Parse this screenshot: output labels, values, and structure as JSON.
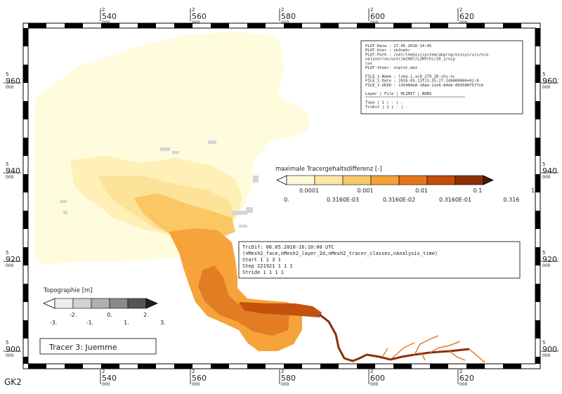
{
  "grid_labels": {
    "x_top": [
      {
        "a": "2",
        "b": "540",
        "c": "000"
      },
      {
        "a": "2",
        "b": "560",
        "c": "000"
      },
      {
        "a": "2",
        "b": "580",
        "c": "000"
      },
      {
        "a": "2",
        "b": "600",
        "c": "000"
      },
      {
        "a": "2",
        "b": "620",
        "c": "000"
      }
    ],
    "x_bottom": [
      {
        "a": "2",
        "b": "540",
        "c": "000"
      },
      {
        "a": "2",
        "b": "560",
        "c": "000"
      },
      {
        "a": "2",
        "b": "580",
        "c": "000"
      },
      {
        "a": "2",
        "b": "600",
        "c": "000"
      },
      {
        "a": "2",
        "b": "620",
        "c": "000"
      }
    ],
    "y_left": [
      {
        "a": "5",
        "b": "960",
        "c": "000"
      },
      {
        "a": "5",
        "b": "940",
        "c": "000"
      },
      {
        "a": "5",
        "b": "920",
        "c": "000"
      },
      {
        "a": "5",
        "b": "900",
        "c": "000"
      }
    ],
    "y_right": [
      {
        "a": "5",
        "b": "960",
        "c": "000"
      },
      {
        "a": "5",
        "b": "940",
        "c": "000"
      },
      {
        "a": "5",
        "b": "920",
        "c": "000"
      },
      {
        "a": "5",
        "b": "900",
        "c": "000"
      }
    ],
    "crs": "GK2"
  },
  "info_box": {
    "lines": [
      "PLOT-Date : 17.05.2016-14:45",
      "PLOT-User : sk3sphr",
      "PLOT-Path : /net/themis/system/akprog/ecosys/vis/nca",
      "            nalyse/run/untrim2007/LZKP/hc/2D_1/ncp",
      "            lot",
      "PLOT-Steer: ncplot.dat",
      "",
      "FILE_1-Name : lzkp.1.ai0_279_2D.shu.nc",
      "FILE_1-Date : 2016-05-13T11:35:27.249000000+02:0",
      "FILE_1-UUID : 135484e8-18ae-11e6-84de-0035007577cb",
      "",
      "Layer  | File | HLIMIT | NOBS",
      "",
      "Topo   |  1   |   -    |  -",
      "TrcDif |  1   |   -    |  -"
    ]
  },
  "tracer_legend": {
    "title": "maximale Tracergehaltsdifferenz [-]",
    "colors": [
      "#ffffff",
      "#fff8d8",
      "#fde7a8",
      "#f9c86a",
      "#f3a239",
      "#e3761c",
      "#c24d0c",
      "#8c3006",
      "#4a1a03"
    ],
    "labels_top": [
      "0.0001",
      "0.001",
      "0.01",
      "0.1",
      "1."
    ],
    "labels_bottom": [
      "0.",
      "0.3160E-03",
      "0.3160E-02",
      "0.3160E-01",
      "0.316"
    ]
  },
  "trcdif_box": {
    "lines": [
      "TrcDif:  06.05.2010-16:10:00 UTC",
      "(nMesh2_face,nMesh2_layer_2d,nMesh2_tracer_classes,nAnalysis_time)",
      "Start        1        1        3        1",
      "Step    221921        1        1        1",
      "Stride       1        1        1        1"
    ]
  },
  "topo_legend": {
    "title": "Topographie [m]",
    "colors": [
      "#ffffff",
      "#eeeeee",
      "#d2d2d2",
      "#b0b0b0",
      "#8a8a8a",
      "#555555",
      "#1e1e1e"
    ],
    "labels_top": [
      "-2.",
      "0.",
      "2."
    ],
    "labels_bottom": [
      "-3.",
      "-1.",
      "1.",
      "3."
    ]
  },
  "tracer_title": "Tracer 3: Juemme",
  "map_colors": {
    "sea": "#fffbdd",
    "light": "#fff0b8",
    "mid": "#fde29a",
    "gold": "#fbc762",
    "orange": "#f6a33b",
    "dark_orange": "#e27d23",
    "deep": "#c2520d",
    "river": "#8b2e0a",
    "land_gray": "#d5d5d5"
  }
}
